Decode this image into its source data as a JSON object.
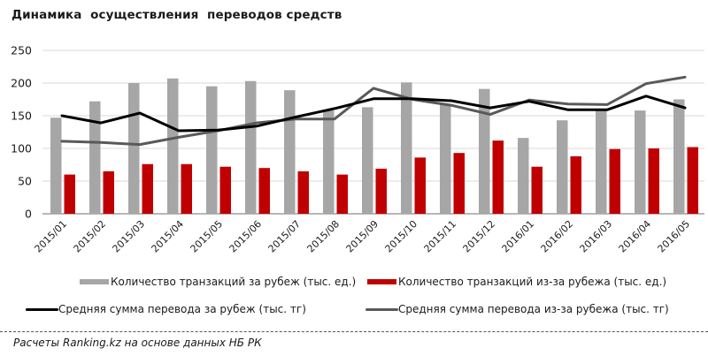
{
  "header": {
    "title": "Динамика  осуществления  переводов средств"
  },
  "chart_data": {
    "type": "bar",
    "title": "Динамика осуществления переводов средств",
    "xlabel": "",
    "ylabel": "",
    "ylim": [
      0,
      250
    ],
    "yticks": [
      0,
      50,
      100,
      150,
      200,
      250
    ],
    "grid": true,
    "legend_position": "bottom",
    "categories": [
      "2015/01",
      "2015/02",
      "2015/03",
      "2015/04",
      "2015/05",
      "2015/06",
      "2015/07",
      "2015/08",
      "2015/09",
      "2015/10",
      "2015/11",
      "2015/12",
      "2016/01",
      "2016/02",
      "2016/03",
      "2016/04",
      "2016/05"
    ],
    "series": [
      {
        "name": "Количество транзакций за рубеж (тыс. ед.)",
        "type": "bar",
        "color": "#a6a6a6",
        "values": [
          147,
          172,
          200,
          207,
          195,
          203,
          189,
          158,
          163,
          201,
          168,
          191,
          116,
          143,
          160,
          158,
          175
        ]
      },
      {
        "name": "Количество транзакций из-за рубежа (тыс. ед.)",
        "type": "bar",
        "color": "#c00000",
        "values": [
          60,
          65,
          76,
          76,
          72,
          70,
          65,
          60,
          69,
          86,
          93,
          112,
          72,
          88,
          99,
          100,
          102
        ]
      },
      {
        "name": "Средняя сумма перевода за рубеж (тыс. тг)",
        "type": "line",
        "color": "#000000",
        "values": [
          150,
          139,
          154,
          127,
          128,
          134,
          148,
          161,
          176,
          176,
          173,
          162,
          172,
          159,
          159,
          180,
          162
        ]
      },
      {
        "name": "Средняя сумма перевода из-за рубежа (тыс. тг)",
        "type": "line",
        "color": "#595959",
        "values": [
          111,
          109,
          106,
          117,
          127,
          139,
          145,
          145,
          192,
          175,
          166,
          152,
          174,
          168,
          167,
          199,
          209
        ]
      }
    ]
  },
  "legend": {
    "items": [
      {
        "label": "Количество транзакций за рубеж (тыс. ед.)",
        "kind": "bar",
        "color": "#a6a6a6"
      },
      {
        "label": "Количество транзакций из-за рубежа (тыс. ед.)",
        "kind": "bar",
        "color": "#c00000"
      },
      {
        "label": "Средняя сумма перевода за рубеж (тыс. тг)",
        "kind": "line",
        "color": "#000000"
      },
      {
        "label": "Средняя сумма перевода из-за рубежа (тыс. тг)",
        "kind": "line",
        "color": "#595959"
      }
    ]
  },
  "footer": {
    "source": "Расчеты Ranking.kz на основе данных  НБ РК"
  }
}
